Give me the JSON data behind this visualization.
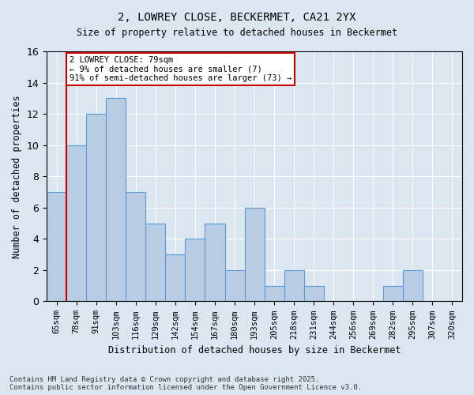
{
  "title1": "2, LOWREY CLOSE, BECKERMET, CA21 2YX",
  "title2": "Size of property relative to detached houses in Beckermet",
  "xlabel": "Distribution of detached houses by size in Beckermet",
  "ylabel": "Number of detached properties",
  "bins": [
    "65sqm",
    "78sqm",
    "91sqm",
    "103sqm",
    "116sqm",
    "129sqm",
    "142sqm",
    "154sqm",
    "167sqm",
    "180sqm",
    "193sqm",
    "205sqm",
    "218sqm",
    "231sqm",
    "244sqm",
    "256sqm",
    "269sqm",
    "282sqm",
    "295sqm",
    "307sqm",
    "320sqm"
  ],
  "values": [
    7,
    10,
    12,
    13,
    7,
    5,
    3,
    4,
    5,
    2,
    6,
    1,
    2,
    1,
    0,
    0,
    0,
    1,
    2,
    0,
    0
  ],
  "bar_color": "#b8cce4",
  "bar_edge_color": "#5b9bd5",
  "vline_x": 1,
  "vline_color": "#cc0000",
  "annotation_text": "2 LOWREY CLOSE: 79sqm\n← 9% of detached houses are smaller (7)\n91% of semi-detached houses are larger (73) →",
  "annotation_box_color": "#ffffff",
  "annotation_box_edge": "#cc0000",
  "bg_color": "#dce6f1",
  "plot_bg_color": "#dce6f1",
  "grid_color": "#ffffff",
  "footer": "Contains HM Land Registry data © Crown copyright and database right 2025.\nContains public sector information licensed under the Open Government Licence v3.0.",
  "ylim": [
    0,
    16
  ],
  "yticks": [
    0,
    2,
    4,
    6,
    8,
    10,
    12,
    14,
    16
  ]
}
